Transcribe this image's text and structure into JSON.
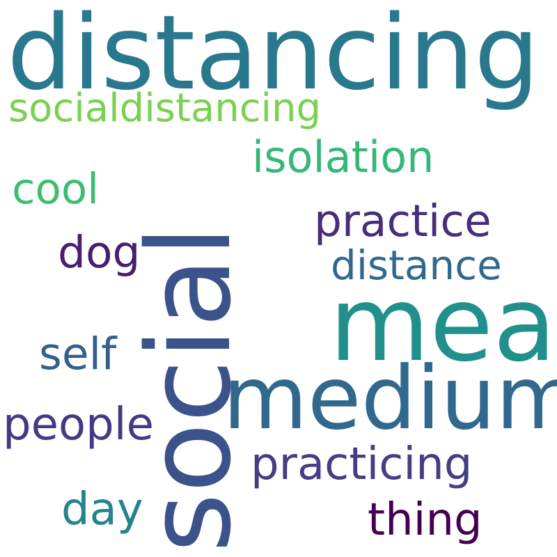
{
  "words": {
    "distancing": {
      "text": "distancing",
      "color": "#2a788e"
    },
    "social": {
      "text": "social",
      "color": "#3b528b"
    },
    "mean": {
      "text": "mean",
      "color": "#21908d"
    },
    "medium": {
      "text": "medium",
      "color": "#31688e"
    },
    "socialdistancing": {
      "text": "socialdistancing",
      "color": "#7ad151"
    },
    "isolation": {
      "text": "isolation",
      "color": "#35b779"
    },
    "cool": {
      "text": "cool",
      "color": "#3fbc73"
    },
    "practice": {
      "text": "practice",
      "color": "#472d7b"
    },
    "dog": {
      "text": "dog",
      "color": "#481f70"
    },
    "distance": {
      "text": "distance",
      "color": "#31688e"
    },
    "self": {
      "text": "self",
      "color": "#355f8d"
    },
    "people": {
      "text": "people",
      "color": "#443983"
    },
    "practicing": {
      "text": "practicing",
      "color": "#433e85"
    },
    "day": {
      "text": "day",
      "color": "#26828e"
    },
    "thing": {
      "text": "thing",
      "color": "#440154"
    }
  }
}
